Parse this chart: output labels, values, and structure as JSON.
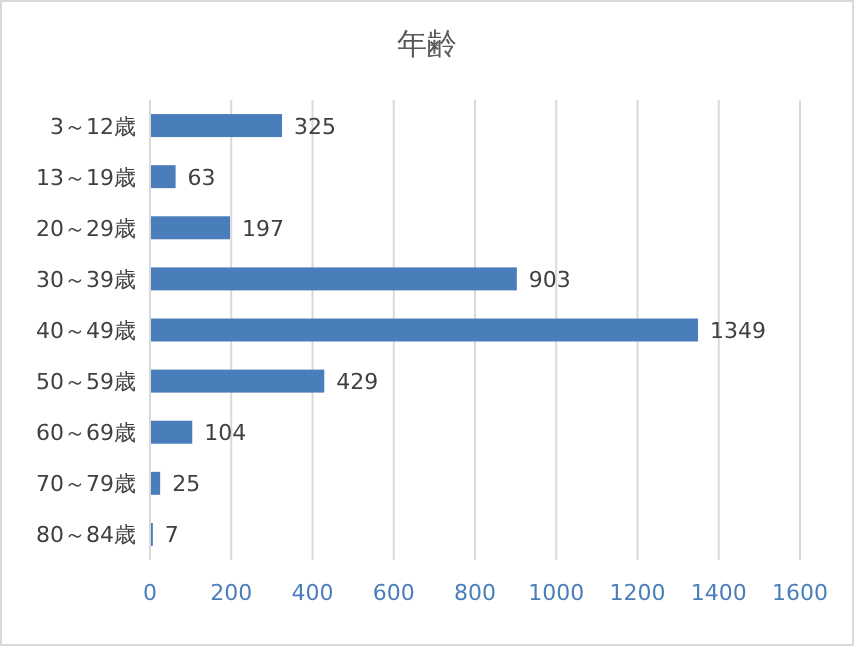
{
  "chart_data": {
    "type": "bar",
    "orientation": "horizontal",
    "title": "年齢",
    "categories": [
      "3～12歳",
      "13～19歳",
      "20～29歳",
      "30～39歳",
      "40～49歳",
      "50～59歳",
      "60～69歳",
      "70～79歳",
      "80～84歳"
    ],
    "values": [
      325,
      63,
      197,
      903,
      1349,
      429,
      104,
      25,
      7
    ],
    "color": "#4a7ebb",
    "xlim": [
      0,
      1600
    ],
    "xticks": [
      0,
      200,
      400,
      600,
      800,
      1000,
      1200,
      1400,
      1600
    ],
    "grid": "x",
    "data_labels": true
  }
}
